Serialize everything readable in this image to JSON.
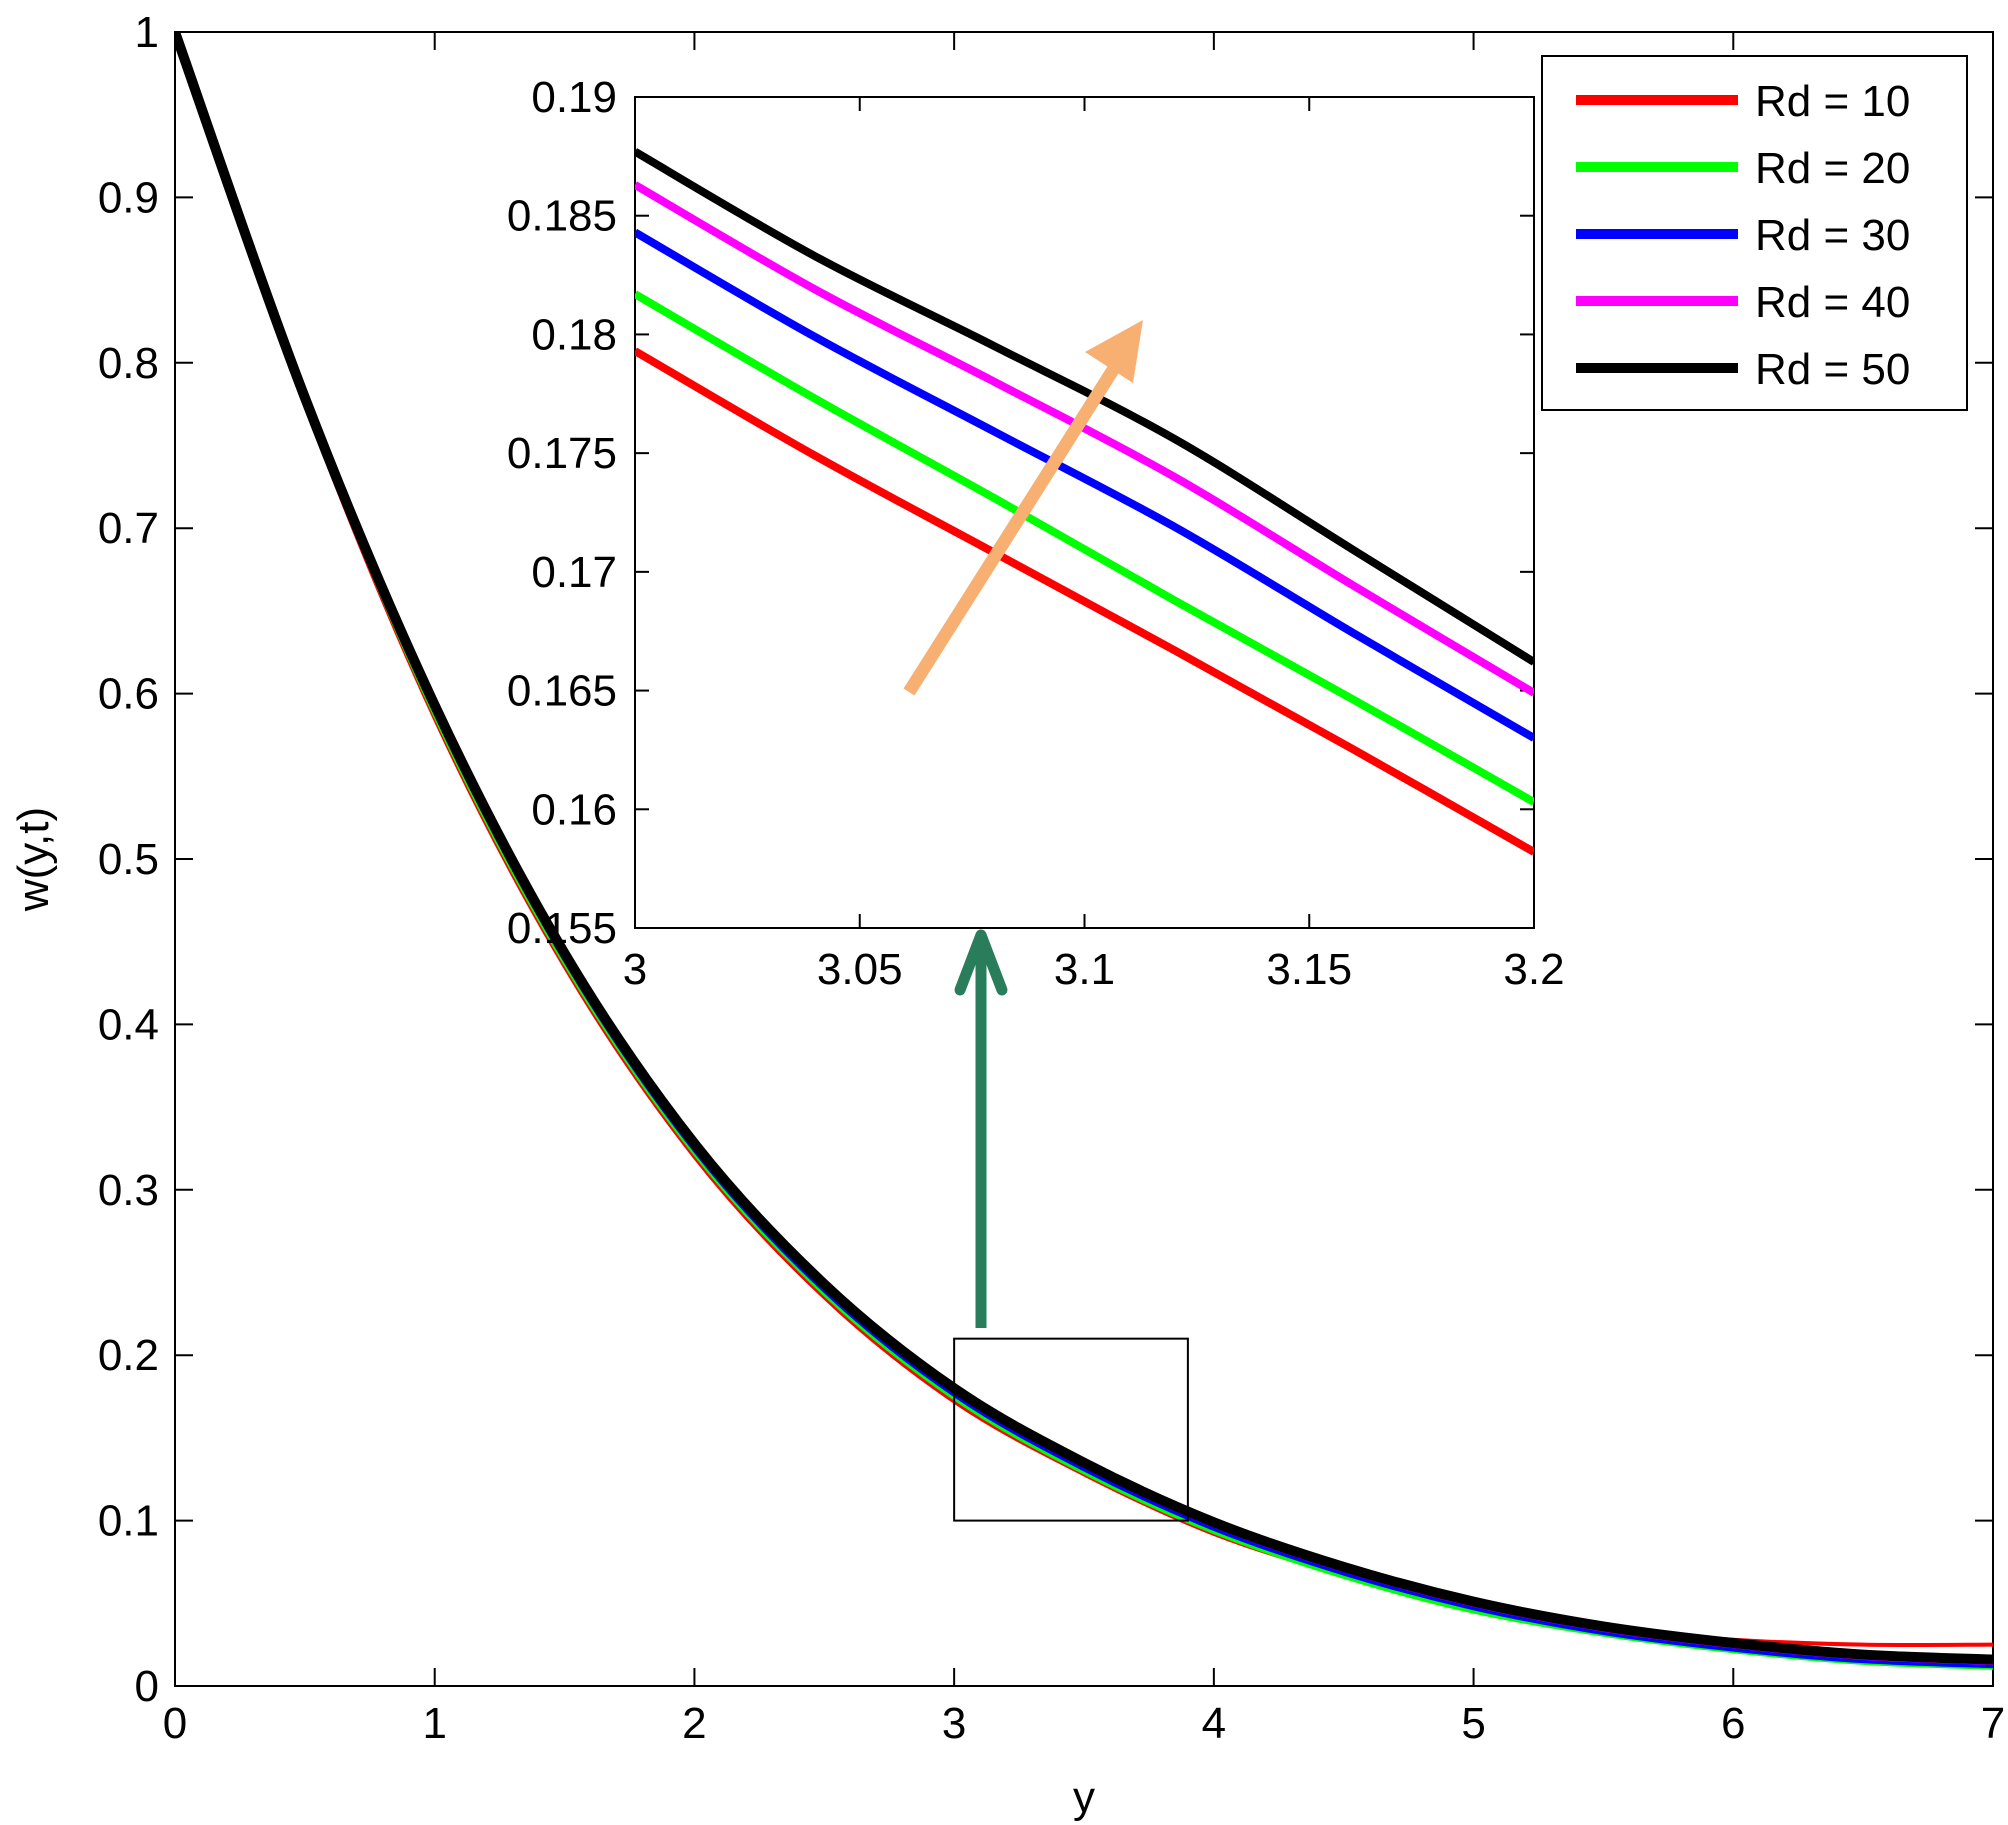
{
  "chart_data": [
    {
      "id": "main",
      "type": "line",
      "xlabel": "y",
      "ylabel": "w(y,t)",
      "xlim": [
        0,
        7
      ],
      "ylim": [
        0,
        1
      ],
      "xticks": [
        0,
        1,
        2,
        3,
        4,
        5,
        6,
        7
      ],
      "xtick_labels": [
        "0",
        "1",
        "2",
        "3",
        "4",
        "5",
        "6",
        "7"
      ],
      "yticks": [
        0,
        0.1,
        0.2,
        0.3,
        0.4,
        0.5,
        0.6,
        0.7,
        0.8,
        0.9,
        1
      ],
      "ytick_labels": [
        "0",
        "0.1",
        "0.2",
        "0.3",
        "0.4",
        "0.5",
        "0.6",
        "0.7",
        "0.8",
        "0.9",
        "1"
      ],
      "grid": false,
      "legend_position": "top-right",
      "x": [
        0,
        0.5,
        1,
        1.5,
        2,
        2.5,
        3,
        3.5,
        4,
        4.5,
        5,
        5.5,
        6,
        6.5,
        7
      ],
      "series": [
        {
          "name": "Rd = 10",
          "color": "#ff0000",
          "values": [
            1,
            0.775,
            0.585,
            0.435,
            0.32,
            0.235,
            0.172,
            0.128,
            0.092,
            0.067,
            0.047,
            0.035,
            0.028,
            0.025,
            0.025
          ]
        },
        {
          "name": "Rd = 20",
          "color": "#00ff00",
          "values": [
            1,
            0.776,
            0.587,
            0.437,
            0.322,
            0.237,
            0.174,
            0.129,
            0.093,
            0.066,
            0.045,
            0.031,
            0.021,
            0.014,
            0.011
          ]
        },
        {
          "name": "Rd = 30",
          "color": "#0000ff",
          "values": [
            1,
            0.777,
            0.589,
            0.439,
            0.324,
            0.239,
            0.176,
            0.131,
            0.095,
            0.068,
            0.047,
            0.032,
            0.022,
            0.015,
            0.012
          ]
        },
        {
          "name": "Rd = 40",
          "color": "#ff00ff",
          "values": [
            1,
            0.778,
            0.591,
            0.441,
            0.326,
            0.241,
            0.178,
            0.133,
            0.097,
            0.07,
            0.049,
            0.034,
            0.024,
            0.017,
            0.014
          ]
        },
        {
          "name": "Rd = 50",
          "color": "#000000",
          "values": [
            1,
            0.779,
            0.593,
            0.443,
            0.328,
            0.243,
            0.18,
            0.135,
            0.099,
            0.072,
            0.051,
            0.036,
            0.026,
            0.019,
            0.016
          ]
        }
      ],
      "zoom_region": {
        "x": [
          3,
          3.9
        ],
        "y": [
          0.1,
          0.21
        ]
      }
    },
    {
      "id": "inset",
      "type": "line",
      "xlim": [
        3,
        3.2
      ],
      "ylim": [
        0.155,
        0.19
      ],
      "xticks": [
        3,
        3.05,
        3.1,
        3.15,
        3.2
      ],
      "xtick_labels": [
        "3",
        "3.05",
        "3.1",
        "3.15",
        "3.2"
      ],
      "yticks": [
        0.155,
        0.16,
        0.165,
        0.17,
        0.175,
        0.18,
        0.185,
        0.19
      ],
      "ytick_labels": [
        "0.155",
        "0.16",
        "0.165",
        "0.17",
        "0.175",
        "0.18",
        "0.185",
        "0.19"
      ],
      "grid": false,
      "x": [
        3,
        3.04,
        3.08,
        3.12,
        3.16,
        3.2
      ],
      "series": [
        {
          "name": "Rd = 10",
          "color": "#ff0000",
          "values": [
            0.1793,
            0.1749,
            0.1708,
            0.1667,
            0.1625,
            0.1582
          ]
        },
        {
          "name": "Rd = 20",
          "color": "#00ff00",
          "values": [
            0.1817,
            0.1773,
            0.1731,
            0.1688,
            0.1646,
            0.1603
          ]
        },
        {
          "name": "Rd = 30",
          "color": "#0000ff",
          "values": [
            0.1843,
            0.1799,
            0.1759,
            0.1719,
            0.1674,
            0.163
          ]
        },
        {
          "name": "Rd = 40",
          "color": "#ff00ff",
          "values": [
            0.1863,
            0.1819,
            0.178,
            0.174,
            0.1694,
            0.1649
          ]
        },
        {
          "name": "Rd = 50",
          "color": "#000000",
          "values": [
            0.1877,
            0.1833,
            0.1795,
            0.1756,
            0.1709,
            0.1662
          ]
        }
      ],
      "trend_arrow_color": "#f7b072",
      "connector_arrow_color": "#2a7d5a"
    }
  ]
}
